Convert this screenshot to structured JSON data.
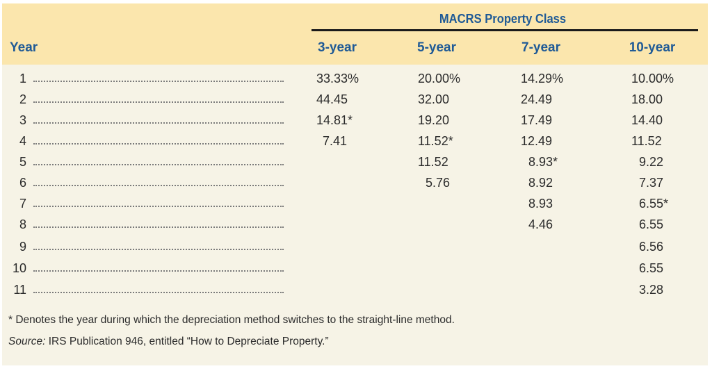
{
  "table": {
    "group_header": "MACRS Property Class",
    "year_header": "Year",
    "columns": [
      "3-year",
      "5-year",
      "7-year",
      "10-year"
    ],
    "rows": [
      {
        "year": "1",
        "values": [
          "33.33%",
          "20.00%",
          "14.29%",
          "10.00%"
        ]
      },
      {
        "year": "2",
        "values": [
          "44.45",
          "32.00",
          "24.49",
          "18.00"
        ]
      },
      {
        "year": "3",
        "values": [
          "14.81*",
          "19.20",
          "17.49",
          "14.40"
        ]
      },
      {
        "year": "4",
        "values": [
          "7.41",
          "11.52*",
          "12.49",
          "11.52"
        ]
      },
      {
        "year": "5",
        "values": [
          "",
          "11.52",
          "8.93*",
          "9.22"
        ]
      },
      {
        "year": "6",
        "values": [
          "",
          "5.76",
          "8.92",
          "7.37"
        ]
      },
      {
        "year": "7",
        "values": [
          "",
          "",
          "8.93",
          "6.55*"
        ]
      },
      {
        "year": "8",
        "values": [
          "",
          "",
          "4.46",
          "6.55"
        ]
      },
      {
        "year": "9",
        "values": [
          "",
          "",
          "",
          "6.56"
        ]
      },
      {
        "year": "10",
        "values": [
          "",
          "",
          "",
          "6.55"
        ]
      },
      {
        "year": "11",
        "values": [
          "",
          "",
          "",
          "3.28"
        ]
      }
    ]
  },
  "notes": {
    "footnote": "* Denotes the year during which the depreciation method switches to the straight-line method.",
    "source_label": "Source:",
    "source_text": " IRS Publication 946, entitled “How to Depreciate Property.”"
  },
  "colors": {
    "header_band": "#fbe6ad",
    "panel": "#f6f3e6",
    "header_text": "#1f5a96"
  }
}
